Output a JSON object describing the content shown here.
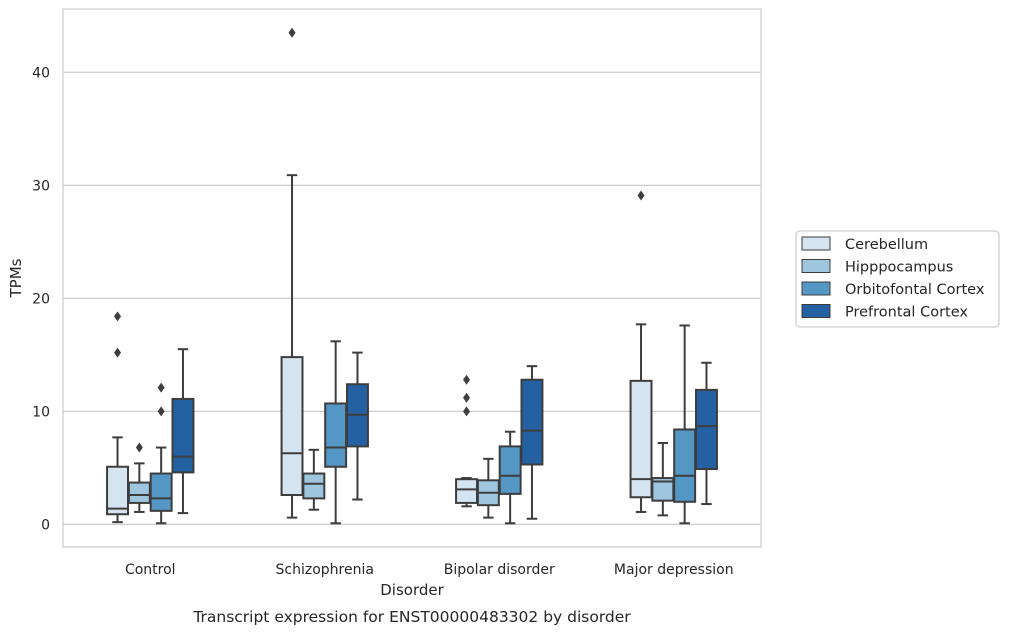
{
  "chart_data": {
    "type": "box",
    "title": "",
    "caption": "Transcript expression for ENST00000483302 by disorder",
    "xlabel": "Disorder",
    "ylabel": "TPMs",
    "ylim": [
      -2,
      45.6
    ],
    "yticks": [
      0,
      10,
      20,
      30,
      40
    ],
    "grid": "y",
    "legend_position": "right",
    "categories": [
      "Control",
      "Schizophrenia",
      "Bipolar disorder",
      "Major depression"
    ],
    "series": [
      {
        "name": "Cerebellum",
        "color": "#d5e4f1",
        "boxes": [
          {
            "whislo": 0.2,
            "q1": 0.9,
            "med": 1.4,
            "q3": 5.1,
            "whishi": 7.7,
            "fliers": [
              15.2,
              18.4
            ]
          },
          {
            "whislo": 0.6,
            "q1": 2.6,
            "med": 6.3,
            "q3": 14.8,
            "whishi": 30.9,
            "fliers": [
              43.5
            ]
          },
          {
            "whislo": 1.6,
            "q1": 1.9,
            "med": 3.1,
            "q3": 4.0,
            "whishi": 4.1,
            "fliers": [
              10.0,
              11.2,
              12.8
            ]
          },
          {
            "whislo": 1.1,
            "q1": 2.4,
            "med": 4.0,
            "q3": 12.7,
            "whishi": 17.7,
            "fliers": [
              29.1
            ]
          }
        ]
      },
      {
        "name": "Hipppocampus",
        "color": "#9fc6df",
        "boxes": [
          {
            "whislo": 1.1,
            "q1": 1.9,
            "med": 2.6,
            "q3": 3.7,
            "whishi": 5.4,
            "fliers": [
              6.8
            ]
          },
          {
            "whislo": 1.3,
            "q1": 2.3,
            "med": 3.6,
            "q3": 4.5,
            "whishi": 6.6,
            "fliers": []
          },
          {
            "whislo": 0.6,
            "q1": 1.7,
            "med": 2.8,
            "q3": 3.9,
            "whishi": 5.8,
            "fliers": []
          },
          {
            "whislo": 0.8,
            "q1": 2.1,
            "med": 3.8,
            "q3": 4.1,
            "whishi": 7.2,
            "fliers": []
          }
        ]
      },
      {
        "name": "Orbitofontal Cortex",
        "color": "#5597c4",
        "boxes": [
          {
            "whislo": 0.1,
            "q1": 1.2,
            "med": 2.3,
            "q3": 4.5,
            "whishi": 6.8,
            "fliers": [
              10.0,
              12.1
            ]
          },
          {
            "whislo": 0.1,
            "q1": 5.1,
            "med": 6.8,
            "q3": 10.7,
            "whishi": 16.2,
            "fliers": []
          },
          {
            "whislo": 0.1,
            "q1": 2.7,
            "med": 4.3,
            "q3": 6.9,
            "whishi": 8.2,
            "fliers": []
          },
          {
            "whislo": 0.1,
            "q1": 2.0,
            "med": 4.3,
            "q3": 8.4,
            "whishi": 17.6,
            "fliers": []
          }
        ]
      },
      {
        "name": "Prefrontal Cortex",
        "color": "#2461a3",
        "boxes": [
          {
            "whislo": 1.0,
            "q1": 4.6,
            "med": 6.0,
            "q3": 11.1,
            "whishi": 15.5,
            "fliers": []
          },
          {
            "whislo": 2.2,
            "q1": 6.9,
            "med": 9.7,
            "q3": 12.4,
            "whishi": 15.2,
            "fliers": []
          },
          {
            "whislo": 0.5,
            "q1": 5.3,
            "med": 8.3,
            "q3": 12.8,
            "whishi": 14.0,
            "fliers": []
          },
          {
            "whislo": 1.8,
            "q1": 4.9,
            "med": 8.7,
            "q3": 11.9,
            "whishi": 14.3,
            "fliers": []
          }
        ]
      }
    ]
  }
}
